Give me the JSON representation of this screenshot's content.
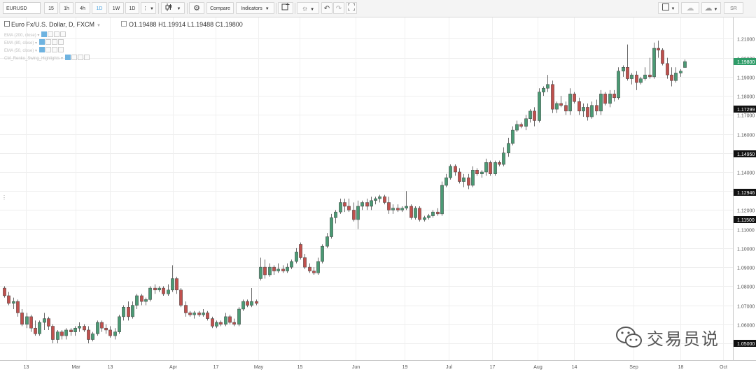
{
  "toolbar": {
    "symbol": "EURUSD",
    "intervals": [
      "15",
      "1h",
      "4h",
      "1D",
      "1W",
      "1D"
    ],
    "active_interval_index": 3,
    "more": "⋮",
    "compare_label": "Compare",
    "indicators_label": "Indicators",
    "sr_label": "SR",
    "accent_color": "#4aa3df"
  },
  "legend": {
    "title": "Euro Fx/U.S. Dollar, D, FXCM",
    "open": "O1.19488",
    "high": "H1.19914",
    "low": "L1.19488",
    "close": "C1.19800",
    "indicators": [
      "EMA (200, close)",
      "EMA (80, close)",
      "EMA (50, close)",
      "CM_Renko_Swing_Highlights"
    ]
  },
  "watermark": {
    "text": "交易员说"
  },
  "chart_data": {
    "type": "candlestick",
    "ylim": [
      1.05,
      1.2175
    ],
    "y_ticks": [
      1.05,
      1.06,
      1.07,
      1.08,
      1.09,
      1.1,
      1.11,
      1.12,
      1.13,
      1.14,
      1.15,
      1.16,
      1.17,
      1.18,
      1.19,
      1.2,
      1.21
    ],
    "y_tick_labels": [
      "1.05000",
      "1.06000",
      "1.07000",
      "1.08000",
      "1.09000",
      "1.10000",
      "1.11000",
      "1.12000",
      "1.13000",
      "1.14000",
      "1.15000",
      "1.16000",
      "1.17000",
      "1.18000",
      "1.19000",
      "1.20000",
      "1.21000"
    ],
    "price_markers": [
      {
        "value": 1.198,
        "label": "1.19800",
        "color": "#2e9c68"
      },
      {
        "value": 1.173,
        "label": "1.17299",
        "color": "#111111"
      },
      {
        "value": 1.1495,
        "label": "1.14950",
        "color": "#111111"
      },
      {
        "value": 1.1295,
        "label": "1.12946",
        "color": "#111111"
      },
      {
        "value": 1.115,
        "label": "1.11500",
        "color": "#111111"
      },
      {
        "value": 1.05,
        "label": "1.05000",
        "color": "#111111"
      }
    ],
    "x_tick_labels": [
      "13",
      "Mar",
      "13",
      "Apr",
      "17",
      "May",
      "15",
      "Jun",
      "19",
      "Jul",
      "17",
      "Aug",
      "14",
      "Sep",
      "18",
      "Oct"
    ],
    "up_color": "#4a9a74",
    "down_color": "#c0504d",
    "ohlc": [
      [
        1.079,
        1.08,
        1.074,
        1.075
      ],
      [
        1.075,
        1.077,
        1.07,
        1.071
      ],
      [
        1.071,
        1.074,
        1.068,
        1.072
      ],
      [
        1.072,
        1.073,
        1.064,
        1.066
      ],
      [
        1.066,
        1.068,
        1.059,
        1.06
      ],
      [
        1.06,
        1.066,
        1.058,
        1.064
      ],
      [
        1.064,
        1.065,
        1.056,
        1.058
      ],
      [
        1.058,
        1.062,
        1.054,
        1.055
      ],
      [
        1.055,
        1.062,
        1.054,
        1.061
      ],
      [
        1.061,
        1.066,
        1.057,
        1.063
      ],
      [
        1.063,
        1.064,
        1.057,
        1.059
      ],
      [
        1.059,
        1.06,
        1.05,
        1.052
      ],
      [
        1.052,
        1.057,
        1.05,
        1.056
      ],
      [
        1.056,
        1.057,
        1.052,
        1.054
      ],
      [
        1.054,
        1.058,
        1.052,
        1.057
      ],
      [
        1.057,
        1.058,
        1.054,
        1.056
      ],
      [
        1.056,
        1.059,
        1.054,
        1.058
      ],
      [
        1.058,
        1.061,
        1.056,
        1.059
      ],
      [
        1.059,
        1.06,
        1.056,
        1.057
      ],
      [
        1.057,
        1.059,
        1.05,
        1.052
      ],
      [
        1.052,
        1.056,
        1.051,
        1.055
      ],
      [
        1.055,
        1.062,
        1.054,
        1.061
      ],
      [
        1.061,
        1.062,
        1.056,
        1.058
      ],
      [
        1.058,
        1.06,
        1.055,
        1.057
      ],
      [
        1.057,
        1.059,
        1.053,
        1.054
      ],
      [
        1.054,
        1.058,
        1.052,
        1.056
      ],
      [
        1.056,
        1.065,
        1.055,
        1.064
      ],
      [
        1.064,
        1.07,
        1.062,
        1.069
      ],
      [
        1.069,
        1.072,
        1.062,
        1.064
      ],
      [
        1.064,
        1.072,
        1.063,
        1.07
      ],
      [
        1.07,
        1.076,
        1.068,
        1.075
      ],
      [
        1.075,
        1.076,
        1.07,
        1.072
      ],
      [
        1.072,
        1.074,
        1.07,
        1.073
      ],
      [
        1.073,
        1.08,
        1.072,
        1.079
      ],
      [
        1.079,
        1.081,
        1.076,
        1.078
      ],
      [
        1.078,
        1.08,
        1.077,
        1.079
      ],
      [
        1.079,
        1.08,
        1.075,
        1.076
      ],
      [
        1.076,
        1.081,
        1.075,
        1.078
      ],
      [
        1.078,
        1.091,
        1.077,
        1.084
      ],
      [
        1.084,
        1.085,
        1.076,
        1.078
      ],
      [
        1.078,
        1.079,
        1.069,
        1.07
      ],
      [
        1.07,
        1.072,
        1.064,
        1.066
      ],
      [
        1.066,
        1.067,
        1.064,
        1.065
      ],
      [
        1.065,
        1.067,
        1.063,
        1.066
      ],
      [
        1.066,
        1.067,
        1.064,
        1.065
      ],
      [
        1.065,
        1.068,
        1.064,
        1.066
      ],
      [
        1.066,
        1.067,
        1.062,
        1.063
      ],
      [
        1.063,
        1.064,
        1.058,
        1.059
      ],
      [
        1.059,
        1.062,
        1.058,
        1.061
      ],
      [
        1.061,
        1.062,
        1.059,
        1.06
      ],
      [
        1.06,
        1.066,
        1.059,
        1.064
      ],
      [
        1.064,
        1.065,
        1.06,
        1.061
      ],
      [
        1.061,
        1.063,
        1.059,
        1.06
      ],
      [
        1.06,
        1.069,
        1.059,
        1.068
      ],
      [
        1.068,
        1.073,
        1.067,
        1.072
      ],
      [
        1.072,
        1.073,
        1.069,
        1.07
      ],
      [
        1.07,
        1.079,
        1.069,
        1.072
      ],
      [
        1.072,
        1.073,
        1.07,
        1.071
      ],
      [
        1.084,
        1.095,
        1.083,
        1.09
      ],
      [
        1.09,
        1.094,
        1.084,
        1.086
      ],
      [
        1.086,
        1.092,
        1.085,
        1.09
      ],
      [
        1.09,
        1.091,
        1.086,
        1.088
      ],
      [
        1.088,
        1.092,
        1.087,
        1.089
      ],
      [
        1.089,
        1.091,
        1.087,
        1.088
      ],
      [
        1.088,
        1.092,
        1.087,
        1.09
      ],
      [
        1.09,
        1.094,
        1.089,
        1.093
      ],
      [
        1.093,
        1.1,
        1.092,
        1.098
      ],
      [
        1.102,
        1.103,
        1.094,
        1.095
      ],
      [
        1.095,
        1.097,
        1.089,
        1.09
      ],
      [
        1.09,
        1.092,
        1.087,
        1.088
      ],
      [
        1.088,
        1.09,
        1.086,
        1.087
      ],
      [
        1.087,
        1.095,
        1.086,
        1.093
      ],
      [
        1.093,
        1.102,
        1.092,
        1.101
      ],
      [
        1.101,
        1.108,
        1.1,
        1.106
      ],
      [
        1.106,
        1.118,
        1.105,
        1.116
      ],
      [
        1.116,
        1.12,
        1.113,
        1.119
      ],
      [
        1.119,
        1.126,
        1.118,
        1.124
      ],
      [
        1.124,
        1.126,
        1.119,
        1.122
      ],
      [
        1.122,
        1.126,
        1.119,
        1.12
      ],
      [
        1.12,
        1.124,
        1.114,
        1.115
      ],
      [
        1.115,
        1.125,
        1.11,
        1.122
      ],
      [
        1.122,
        1.125,
        1.12,
        1.124
      ],
      [
        1.124,
        1.126,
        1.12,
        1.122
      ],
      [
        1.122,
        1.127,
        1.12,
        1.125
      ],
      [
        1.125,
        1.127,
        1.123,
        1.126
      ],
      [
        1.126,
        1.128,
        1.124,
        1.127
      ],
      [
        1.127,
        1.128,
        1.123,
        1.124
      ],
      [
        1.124,
        1.127,
        1.118,
        1.12
      ],
      [
        1.12,
        1.123,
        1.118,
        1.121
      ],
      [
        1.121,
        1.123,
        1.119,
        1.12
      ],
      [
        1.12,
        1.122,
        1.119,
        1.121
      ],
      [
        1.121,
        1.13,
        1.12,
        1.122
      ],
      [
        1.122,
        1.123,
        1.115,
        1.116
      ],
      [
        1.116,
        1.122,
        1.115,
        1.121
      ],
      [
        1.121,
        1.122,
        1.114,
        1.115
      ],
      [
        1.115,
        1.117,
        1.114,
        1.116
      ],
      [
        1.116,
        1.118,
        1.115,
        1.117
      ],
      [
        1.117,
        1.12,
        1.116,
        1.119
      ],
      [
        1.119,
        1.121,
        1.117,
        1.118
      ],
      [
        1.118,
        1.135,
        1.117,
        1.133
      ],
      [
        1.133,
        1.139,
        1.132,
        1.137
      ],
      [
        1.137,
        1.144,
        1.136,
        1.143
      ],
      [
        1.143,
        1.144,
        1.138,
        1.14
      ],
      [
        1.14,
        1.142,
        1.134,
        1.135
      ],
      [
        1.135,
        1.139,
        1.132,
        1.137
      ],
      [
        1.137,
        1.139,
        1.131,
        1.133
      ],
      [
        1.133,
        1.143,
        1.132,
        1.141
      ],
      [
        1.141,
        1.142,
        1.138,
        1.139
      ],
      [
        1.139,
        1.141,
        1.137,
        1.14
      ],
      [
        1.14,
        1.147,
        1.138,
        1.145
      ],
      [
        1.145,
        1.146,
        1.138,
        1.139
      ],
      [
        1.139,
        1.146,
        1.138,
        1.145
      ],
      [
        1.145,
        1.146,
        1.143,
        1.144
      ],
      [
        1.144,
        1.153,
        1.143,
        1.15
      ],
      [
        1.15,
        1.158,
        1.148,
        1.155
      ],
      [
        1.155,
        1.164,
        1.154,
        1.162
      ],
      [
        1.162,
        1.167,
        1.161,
        1.165
      ],
      [
        1.165,
        1.166,
        1.163,
        1.164
      ],
      [
        1.164,
        1.17,
        1.162,
        1.168
      ],
      [
        1.168,
        1.173,
        1.166,
        1.172
      ],
      [
        1.172,
        1.174,
        1.164,
        1.167
      ],
      [
        1.167,
        1.184,
        1.166,
        1.182
      ],
      [
        1.182,
        1.185,
        1.18,
        1.184
      ],
      [
        1.184,
        1.191,
        1.182,
        1.186
      ],
      [
        1.186,
        1.188,
        1.171,
        1.173
      ],
      [
        1.173,
        1.177,
        1.171,
        1.176
      ],
      [
        1.176,
        1.18,
        1.174,
        1.175
      ],
      [
        1.175,
        1.177,
        1.17,
        1.172
      ],
      [
        1.172,
        1.184,
        1.17,
        1.181
      ],
      [
        1.181,
        1.182,
        1.176,
        1.177
      ],
      [
        1.177,
        1.179,
        1.17,
        1.172
      ],
      [
        1.172,
        1.176,
        1.169,
        1.174
      ],
      [
        1.174,
        1.176,
        1.167,
        1.169
      ],
      [
        1.169,
        1.177,
        1.168,
        1.175
      ],
      [
        1.175,
        1.178,
        1.17,
        1.172
      ],
      [
        1.172,
        1.183,
        1.17,
        1.181
      ],
      [
        1.181,
        1.182,
        1.175,
        1.176
      ],
      [
        1.176,
        1.183,
        1.174,
        1.181
      ],
      [
        1.181,
        1.183,
        1.177,
        1.179
      ],
      [
        1.179,
        1.195,
        1.178,
        1.193
      ],
      [
        1.193,
        1.196,
        1.19,
        1.195
      ],
      [
        1.195,
        1.207,
        1.188,
        1.189
      ],
      [
        1.189,
        1.192,
        1.186,
        1.191
      ],
      [
        1.191,
        1.193,
        1.183,
        1.187
      ],
      [
        1.187,
        1.19,
        1.186,
        1.189
      ],
      [
        1.189,
        1.195,
        1.188,
        1.191
      ],
      [
        1.191,
        1.2,
        1.189,
        1.19
      ],
      [
        1.19,
        1.208,
        1.189,
        1.205
      ],
      [
        1.205,
        1.209,
        1.2,
        1.204
      ],
      [
        1.204,
        1.205,
        1.196,
        1.197
      ],
      [
        1.197,
        1.2,
        1.189,
        1.191
      ],
      [
        1.191,
        1.195,
        1.185,
        1.188
      ],
      [
        1.188,
        1.195,
        1.187,
        1.192
      ],
      [
        1.192,
        1.194,
        1.19,
        1.193
      ],
      [
        1.1949,
        1.1991,
        1.1949,
        1.198
      ]
    ]
  }
}
